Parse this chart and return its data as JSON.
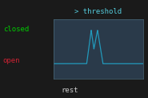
{
  "bg_color": "#1a1a1a",
  "plot_face_color": "#2a3a4a",
  "grid_color": "#4a6a7a",
  "line_color": "#2299bb",
  "title_text": "> threshold",
  "title_color": "#55ccdd",
  "xlabel_text": "rest",
  "xlabel_color": "#cccccc",
  "ylabel_closed": "closed",
  "ylabel_open": "open",
  "ylabel_closed_color": "#00cc00",
  "ylabel_open_color": "#cc2233",
  "ylim": [
    0,
    1
  ],
  "xlim": [
    0,
    100
  ],
  "rest_level": 0.25,
  "closed_level": 0.82,
  "threshold_level": 0.5,
  "p1s": 37,
  "p1p1": 42,
  "p1v": 45,
  "p1p2": 49,
  "p1e": 55,
  "font_size_labels": 6.5,
  "font_size_title": 6.5
}
